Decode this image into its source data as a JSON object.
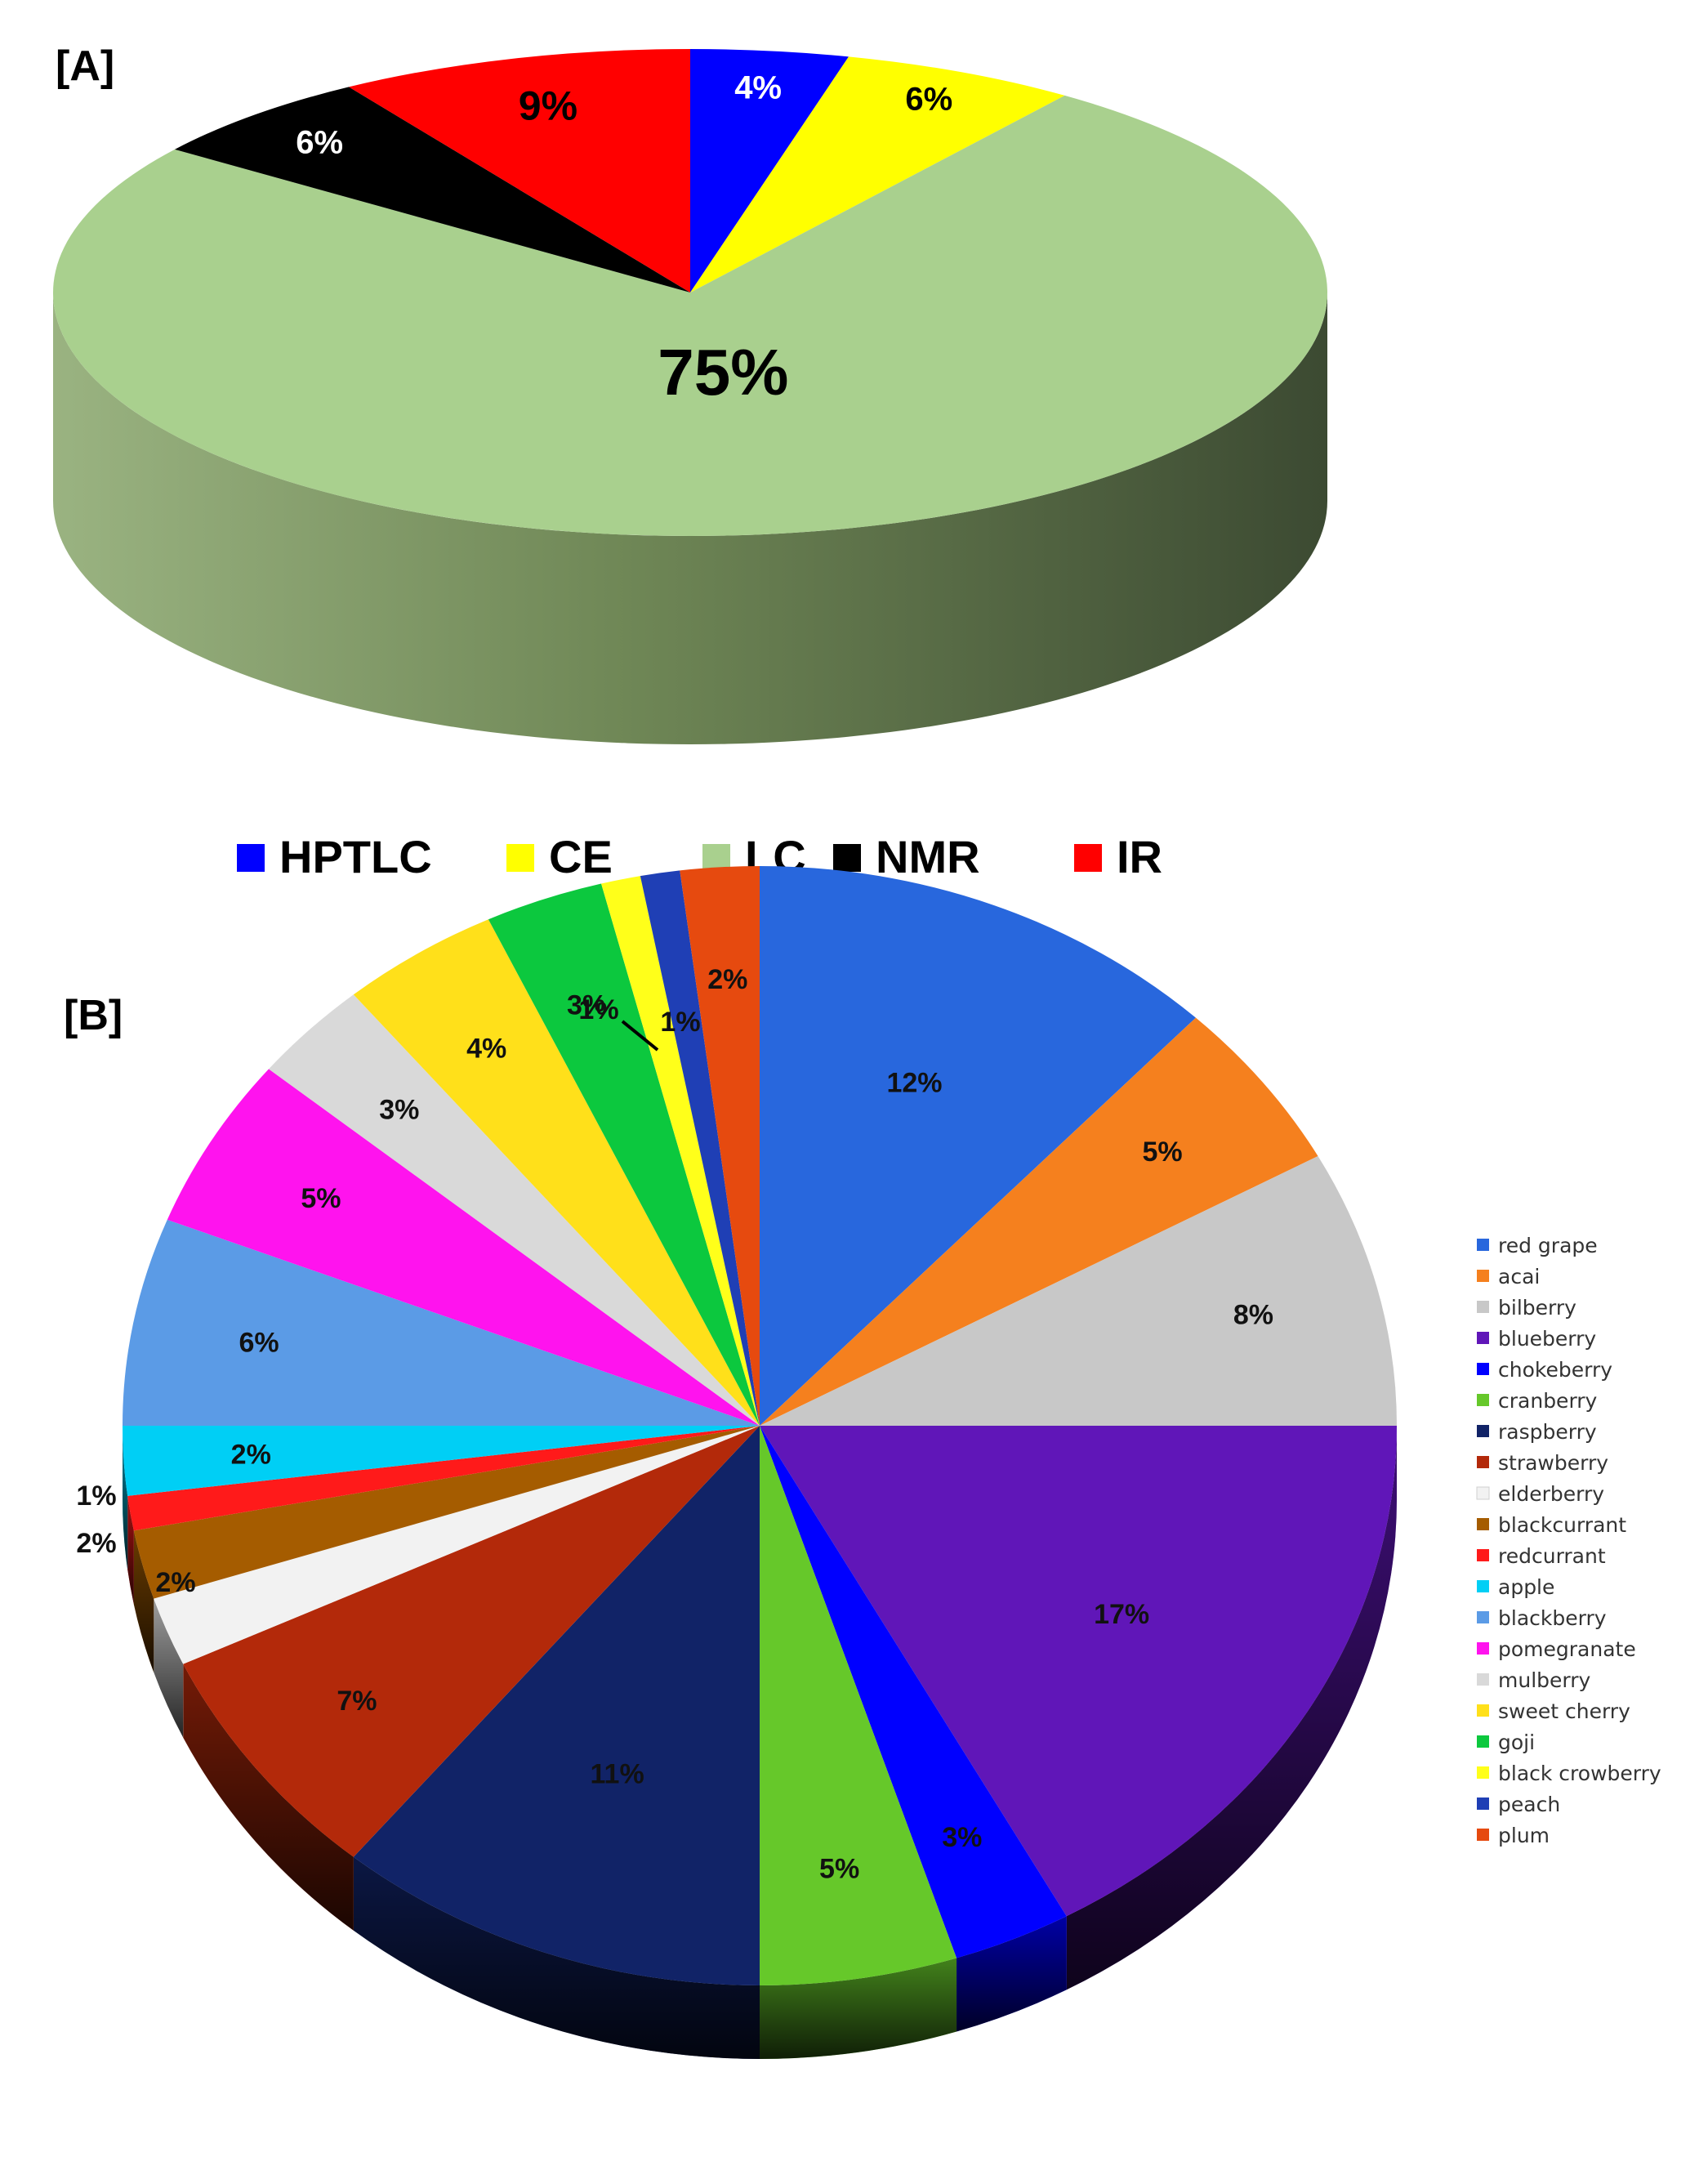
{
  "chart_data": [
    {
      "type": "pie",
      "panel": "[A]",
      "title": "",
      "legend_position": "bottom",
      "slices": [
        {
          "label": "HPTLC",
          "value": 4,
          "value_label": "4%",
          "color": "#0000ff",
          "text_color": "#ffffff"
        },
        {
          "label": "CE",
          "value": 6,
          "value_label": "6%",
          "color": "#ffff00",
          "text_color": "#000000"
        },
        {
          "label": "LC",
          "value": 75,
          "value_label": "75%",
          "color": "#a9d08e",
          "text_color": "#000000"
        },
        {
          "label": "NMR",
          "value": 6,
          "value_label": "6%",
          "color": "#000000",
          "text_color": "#ffffff"
        },
        {
          "label": "IR",
          "value": 9,
          "value_label": "9%",
          "color": "#ff0000",
          "text_color": "#000000"
        }
      ]
    },
    {
      "type": "pie",
      "panel": "[B]",
      "title": "",
      "legend_position": "right",
      "slices": [
        {
          "label": "red grape",
          "value": 12,
          "value_label": "12%",
          "color": "#2867dd"
        },
        {
          "label": "acai",
          "value": 5,
          "value_label": "5%",
          "color": "#f5801e"
        },
        {
          "label": "bilberry",
          "value": 8,
          "value_label": "8%",
          "color": "#c8c8c8"
        },
        {
          "label": "blueberry",
          "value": 17,
          "value_label": "17%",
          "color": "#6016b8"
        },
        {
          "label": "chokeberry",
          "value": 3,
          "value_label": "3%",
          "color": "#0000ff"
        },
        {
          "label": "cranberry",
          "value": 5,
          "value_label": "5%",
          "color": "#66c82a"
        },
        {
          "label": "raspberry",
          "value": 11,
          "value_label": "11%",
          "color": "#112367"
        },
        {
          "label": "strawberry",
          "value": 7,
          "value_label": "7%",
          "color": "#b3290a"
        },
        {
          "label": "elderberry",
          "value": 2,
          "value_label": "2%",
          "color": "#f2f2f2"
        },
        {
          "label": "blackcurrant",
          "value": 2,
          "value_label": "2%",
          "color": "#a55c00"
        },
        {
          "label": "redcurrant",
          "value": 1,
          "value_label": "1%",
          "color": "#ff1a1a"
        },
        {
          "label": "apple",
          "value": 2,
          "value_label": "2%",
          "color": "#00cff5"
        },
        {
          "label": "blackberry",
          "value": 6,
          "value_label": "6%",
          "color": "#5b9be6"
        },
        {
          "label": "pomegranate",
          "value": 5,
          "value_label": "5%",
          "color": "#ff13ee"
        },
        {
          "label": "mulberry",
          "value": 3,
          "value_label": "3%",
          "color": "#d9d9d9"
        },
        {
          "label": "sweet cherry",
          "value": 4,
          "value_label": "4%",
          "color": "#ffe01a"
        },
        {
          "label": "goji",
          "value": 3,
          "value_label": "3%",
          "color": "#0cc83e"
        },
        {
          "label": "black crowberry",
          "value": 1,
          "value_label": "1%",
          "color": "#ffff1a"
        },
        {
          "label": "peach",
          "value": 1,
          "value_label": "1%",
          "color": "#1f3fb5"
        },
        {
          "label": "plum",
          "value": 2,
          "value_label": "2%",
          "color": "#e64a0f"
        }
      ]
    }
  ]
}
